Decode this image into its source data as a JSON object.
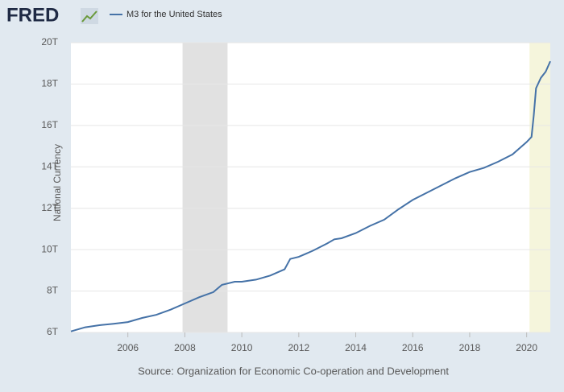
{
  "chart_data": {
    "type": "line",
    "logo": "FRED",
    "source": "Source: Organization for Economic Co-operation and Development",
    "y_label": "National Currency",
    "background": "#e1e9f0",
    "plot_background": "#ffffff",
    "grid": true,
    "legend_position": "top-left",
    "xlim": [
      2004.0,
      2020.83
    ],
    "ylim": [
      6,
      20
    ],
    "xticks": [
      2006,
      2008,
      2010,
      2012,
      2014,
      2016,
      2018,
      2020
    ],
    "yticks": [
      {
        "value": 6,
        "label": "6T"
      },
      {
        "value": 8,
        "label": "8T"
      },
      {
        "value": 10,
        "label": "10T"
      },
      {
        "value": 12,
        "label": "12T"
      },
      {
        "value": 14,
        "label": "14T"
      },
      {
        "value": 16,
        "label": "16T"
      },
      {
        "value": 18,
        "label": "18T"
      },
      {
        "value": 20,
        "label": "20T"
      }
    ],
    "shading": [
      {
        "start": 2007.92,
        "end": 2009.5,
        "color": "#e1e1e1"
      },
      {
        "start": 2020.1,
        "end": 2020.83,
        "color": "#f5f5dc"
      }
    ],
    "x": [
      2004.0,
      2004.5,
      2005.0,
      2005.5,
      2006.0,
      2006.5,
      2007.0,
      2007.5,
      2008.0,
      2008.5,
      2009.0,
      2009.3,
      2009.75,
      2010.0,
      2010.5,
      2011.0,
      2011.5,
      2011.7,
      2012.0,
      2012.5,
      2013.0,
      2013.25,
      2013.5,
      2014.0,
      2014.5,
      2015.0,
      2015.5,
      2016.0,
      2016.5,
      2017.0,
      2017.5,
      2018.0,
      2018.5,
      2019.0,
      2019.5,
      2020.0,
      2020.17,
      2020.25,
      2020.33,
      2020.5,
      2020.67,
      2020.83
    ],
    "series": [
      {
        "name": "M3 for the United States",
        "color": "#4572a7",
        "values": [
          6.05,
          6.25,
          6.35,
          6.42,
          6.5,
          6.7,
          6.85,
          7.1,
          7.4,
          7.7,
          7.95,
          8.3,
          8.45,
          8.45,
          8.55,
          8.75,
          9.05,
          9.55,
          9.65,
          9.95,
          10.3,
          10.5,
          10.55,
          10.8,
          11.15,
          11.45,
          11.95,
          12.4,
          12.75,
          13.1,
          13.45,
          13.75,
          13.95,
          14.25,
          14.6,
          15.2,
          15.45,
          16.5,
          17.8,
          18.3,
          18.6,
          19.1
        ]
      }
    ]
  }
}
